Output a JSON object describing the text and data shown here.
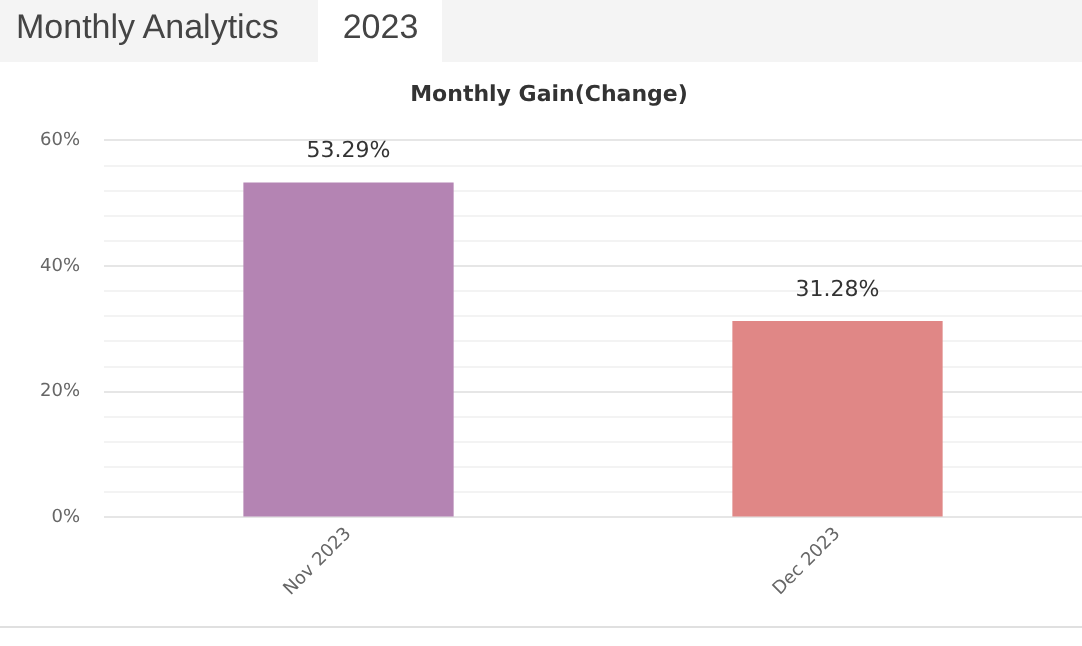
{
  "chart_data": {
    "type": "bar",
    "title": "Monthly Gain(Change)",
    "annotations": [
      "Monthly Analytics",
      "2023"
    ],
    "categories": [
      "Nov 2023",
      "Dec 2023"
    ],
    "values": [
      53.29,
      31.28
    ],
    "colors": [
      "#b484b3",
      "#e08786"
    ],
    "value_labels": [
      "53.29%",
      "31.28%"
    ],
    "ylim": [
      0,
      60
    ],
    "yticks": [
      {
        "value": 0,
        "label": "0%"
      },
      {
        "value": 4,
        "label": null
      },
      {
        "value": 8,
        "label": null
      },
      {
        "value": 12,
        "label": null
      },
      {
        "value": 16,
        "label": null
      },
      {
        "value": 20,
        "label": "20%"
      },
      {
        "value": 24,
        "label": null
      },
      {
        "value": 28,
        "label": null
      },
      {
        "value": 32,
        "label": null
      },
      {
        "value": 36,
        "label": null
      },
      {
        "value": 40,
        "label": "40%"
      },
      {
        "value": 44,
        "label": null
      },
      {
        "value": 48,
        "label": null
      },
      {
        "value": 52,
        "label": null
      },
      {
        "value": 56,
        "label": null
      },
      {
        "value": 60,
        "label": "60%"
      }
    ],
    "grid": "y"
  }
}
